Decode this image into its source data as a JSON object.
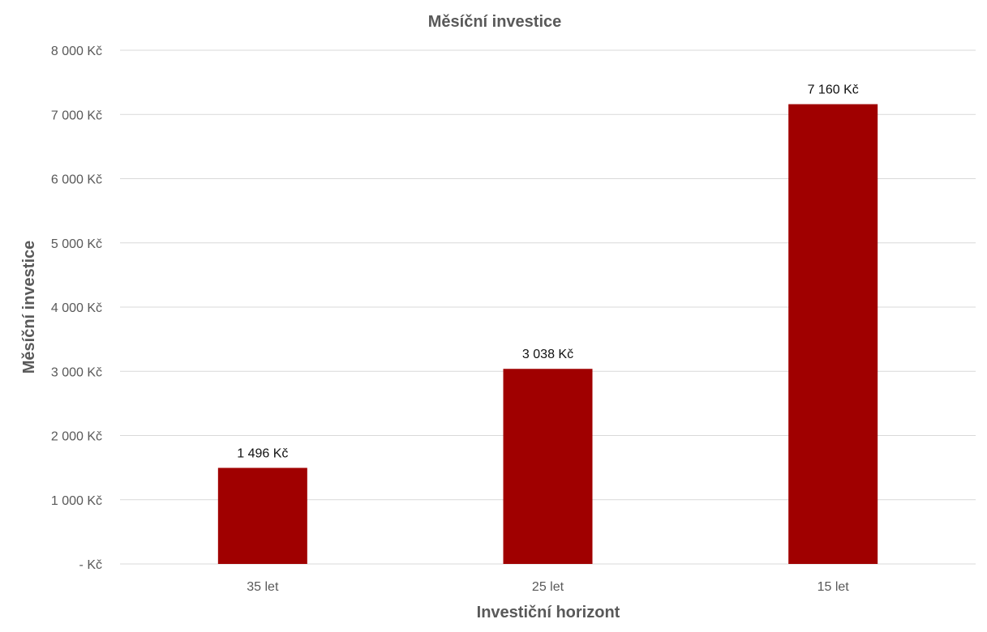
{
  "chart_data": {
    "type": "bar",
    "title": "Měsíční investice",
    "xlabel": "Investiční horizont",
    "ylabel": "Měsíční investice",
    "categories": [
      "35 let",
      "25 let",
      "15 let"
    ],
    "values": [
      1496,
      3038,
      7160
    ],
    "data_labels": [
      "1 496 Kč",
      "3 038 Kč",
      "7 160 Kč"
    ],
    "ylim": [
      0,
      8000
    ],
    "yticks": [
      0,
      1000,
      2000,
      3000,
      4000,
      5000,
      6000,
      7000,
      8000
    ],
    "ytick_labels": [
      "-   Kč",
      "1 000 Kč",
      "2 000 Kč",
      "3 000 Kč",
      "4 000 Kč",
      "5 000 Kč",
      "6 000 Kč",
      "7 000 Kč",
      "8 000 Kč"
    ],
    "grid": true,
    "legend": "none",
    "bar_color": "#a00000"
  }
}
